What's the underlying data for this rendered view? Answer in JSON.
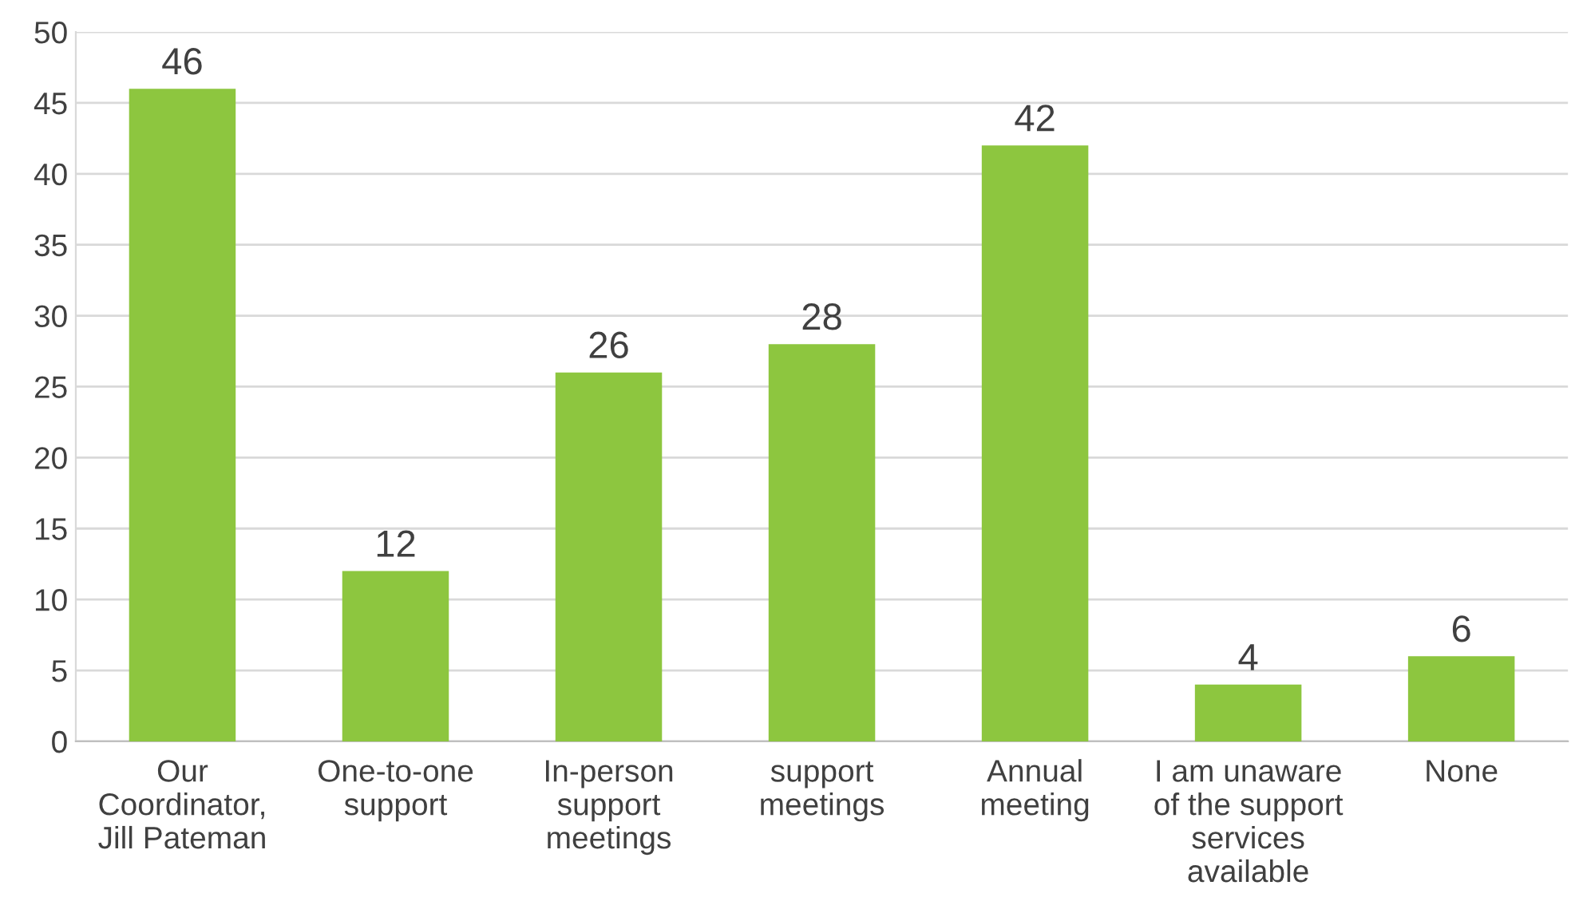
{
  "chart_data": {
    "type": "bar",
    "categories": [
      "Our\nCoordinator,\nJill Pateman",
      "One-to-one\nsupport",
      "In-person\nsupport\nmeetings",
      "support\nmeetings",
      "Annual\nmeeting",
      "I am unaware\nof the support\nservices\navailable",
      "None"
    ],
    "values": [
      46,
      12,
      26,
      28,
      42,
      4,
      6
    ],
    "color": "#8dc63f",
    "ylim": [
      0,
      50
    ],
    "yticks": [
      0,
      5,
      10,
      15,
      20,
      25,
      30,
      35,
      40,
      45,
      50
    ],
    "grid": "y",
    "data_labels": true
  }
}
